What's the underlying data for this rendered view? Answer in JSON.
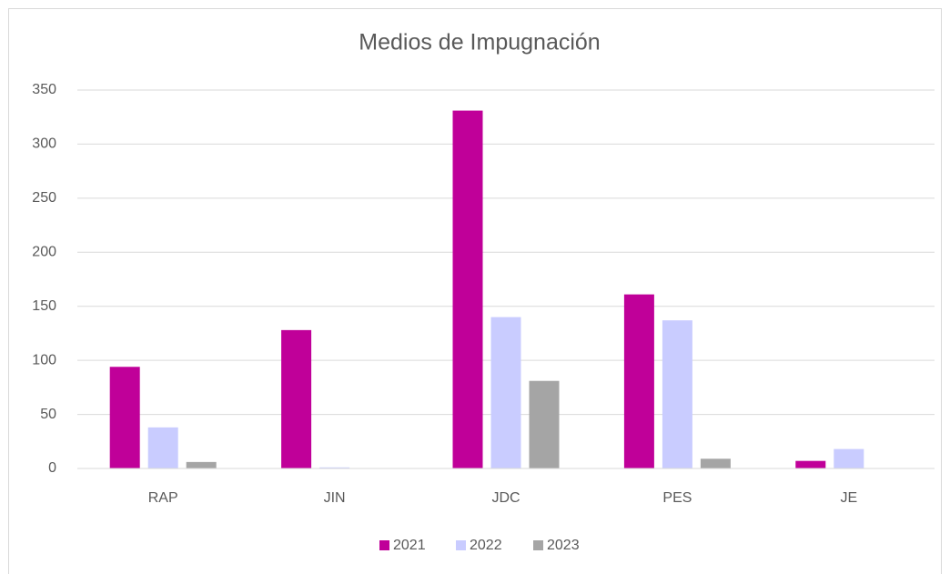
{
  "chart_data": {
    "type": "bar",
    "title": "Medios de Impugnación",
    "categories": [
      "RAP",
      "JIN",
      "JDC",
      "PES",
      "JE"
    ],
    "series": [
      {
        "name": "2021",
        "color": "#c00099",
        "values": [
          94,
          128,
          331,
          161,
          7
        ]
      },
      {
        "name": "2022",
        "color": "#c9ccff",
        "values": [
          38,
          1,
          140,
          137,
          18
        ]
      },
      {
        "name": "2023",
        "color": "#a5a5a5",
        "values": [
          6,
          0,
          81,
          9,
          0
        ]
      }
    ],
    "ylim": [
      0,
      350
    ],
    "yticks": [
      0,
      50,
      100,
      150,
      200,
      250,
      300,
      350
    ],
    "grid": true,
    "legend": "bottom"
  }
}
